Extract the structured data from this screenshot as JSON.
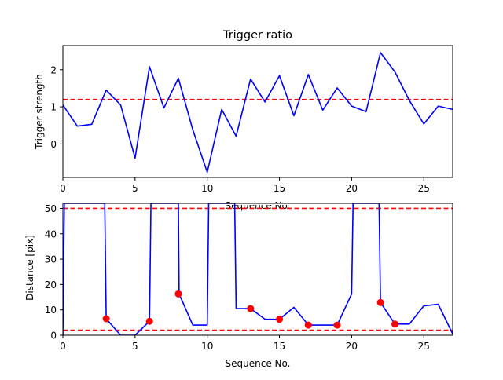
{
  "chart_data": [
    {
      "type": "line",
      "title": "Trigger ratio",
      "xlabel": "Sequence No.",
      "ylabel": "Trigger strength",
      "xlim": [
        0,
        27
      ],
      "ylim": [
        -0.9,
        2.65
      ],
      "xticks": [
        "0",
        "5",
        "10",
        "15",
        "20",
        "25"
      ],
      "yticks": [
        "0",
        "1",
        "2"
      ],
      "series": [
        {
          "color": "#0000ff",
          "x": [
            0,
            1,
            2,
            3,
            4,
            5,
            6,
            7,
            8,
            9,
            10,
            11,
            12,
            13,
            14,
            15,
            16,
            17,
            18,
            19,
            20,
            21,
            22,
            23,
            24,
            25,
            26,
            27
          ],
          "values": [
            1.05,
            0.48,
            0.53,
            1.45,
            1.05,
            -0.38,
            2.08,
            0.97,
            1.77,
            0.38,
            -0.76,
            0.93,
            0.21,
            1.75,
            1.13,
            1.84,
            0.76,
            1.87,
            0.91,
            1.51,
            1.02,
            0.87,
            2.46,
            1.94,
            1.17,
            0.54,
            1.02,
            0.93
          ]
        }
      ],
      "hlines": [
        {
          "value": 1.2,
          "color": "#ff0000",
          "style": "dashed"
        }
      ]
    },
    {
      "type": "line",
      "title": "",
      "xlabel": "Sequence No.",
      "ylabel": "Distance [pix]",
      "xlim": [
        0,
        27
      ],
      "ylim": [
        0,
        52
      ],
      "xticks": [
        "0",
        "5",
        "10",
        "15",
        "20",
        "25"
      ],
      "yticks": [
        "0",
        "10",
        "20",
        "30",
        "40",
        "50"
      ],
      "series": [
        {
          "color": "#0000ff",
          "x": [
            0,
            0.1,
            0.15,
            2.9,
            3,
            4,
            5,
            6,
            6.1,
            7.9,
            8,
            8.05,
            9,
            10,
            10.1,
            11.9,
            12,
            13,
            14,
            15,
            16,
            17,
            18,
            19,
            20,
            20.1,
            21.9,
            22,
            23,
            24,
            25,
            26,
            27
          ],
          "values": [
            0,
            52,
            52,
            52,
            6.5,
            0,
            0,
            5.5,
            52,
            52,
            52,
            16.3,
            4,
            4,
            52,
            52,
            10.5,
            10.5,
            6.3,
            6.3,
            11,
            4,
            4,
            4,
            16.3,
            52,
            52,
            12.9,
            4.4,
            4.4,
            11.6,
            12.2,
            0.5
          ]
        },
        {
          "name": "",
          "color": "#ff0000",
          "marker": "circle",
          "x": [
            3,
            6,
            8,
            13,
            15,
            17,
            19,
            22,
            23
          ],
          "values": [
            6.5,
            5.5,
            16.3,
            10.5,
            6.3,
            4,
            4,
            12.9,
            4.4
          ]
        }
      ],
      "hlines": [
        {
          "value": 50,
          "color": "#ff0000",
          "style": "dashed"
        },
        {
          "value": 2,
          "color": "#ff0000",
          "style": "dashed"
        }
      ]
    }
  ]
}
